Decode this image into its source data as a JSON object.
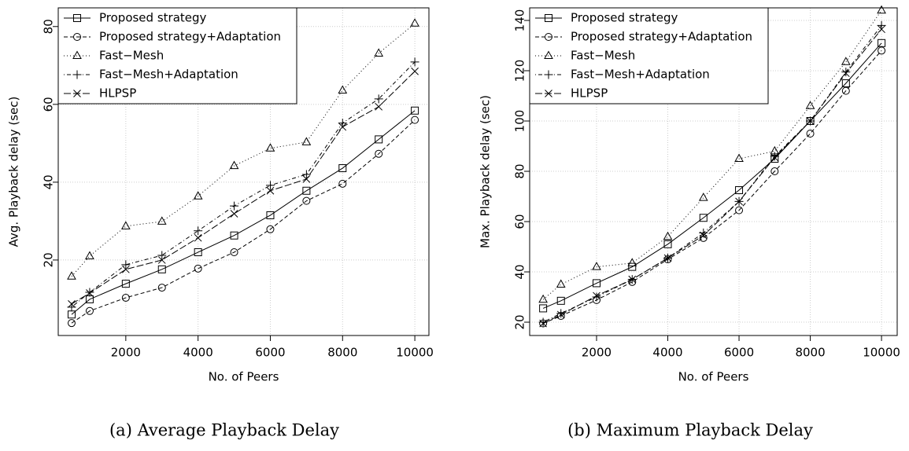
{
  "chart_data": [
    {
      "type": "line",
      "caption": "(a) Average Playback Delay",
      "xlabel": "No. of Peers",
      "ylabel": "Avg. Playback delay (sec)",
      "x": [
        500,
        1000,
        2000,
        3000,
        4000,
        5000,
        6000,
        7000,
        8000,
        9000,
        10000
      ],
      "xlim": [
        130,
        10390
      ],
      "xticks": [
        2000,
        4000,
        6000,
        8000,
        10000
      ],
      "ylim": [
        0.6,
        84.8
      ],
      "yticks": [
        20,
        40,
        60,
        80
      ],
      "grid": true,
      "legend": "top-left",
      "series": [
        {
          "name": "Proposed strategy",
          "color": "#000000",
          "marker": "square",
          "dash": "none",
          "values": [
            6,
            9.9,
            13.9,
            17.6,
            22,
            26.3,
            31.5,
            37.8,
            43.6,
            51,
            58.4
          ]
        },
        {
          "name": "Proposed strategy+Adaptation",
          "color": "#000000",
          "marker": "circle",
          "dash": "5 3",
          "values": [
            3.8,
            6.9,
            10.3,
            12.9,
            17.8,
            22,
            27.9,
            35.2,
            39.6,
            47.3,
            56
          ]
        },
        {
          "name": "Fast−Mesh",
          "color": "#000000",
          "marker": "triangle",
          "dash": "1 3",
          "values": [
            15.8,
            21,
            28.7,
            29.9,
            36.4,
            44.2,
            48.7,
            50.3,
            63.6,
            73.1,
            80.8
          ]
        },
        {
          "name": "Fast−Mesh+Adaptation",
          "color": "#000000",
          "marker": "plus",
          "dash": "1 3 5 3",
          "values": [
            7.9,
            11.7,
            18.8,
            21.2,
            27.5,
            33.9,
            39.2,
            42,
            55.2,
            61.4,
            70.9
          ]
        },
        {
          "name": "HLPSP",
          "color": "#000000",
          "marker": "cross",
          "dash": "9 3",
          "values": [
            8.7,
            11.5,
            17.6,
            20,
            25.7,
            31.9,
            37.8,
            40.8,
            54.2,
            59.4,
            68.5
          ]
        }
      ]
    },
    {
      "type": "line",
      "caption": "(b) Maximum Playback Delay",
      "xlabel": "No. of Peers",
      "ylabel": "Max. Playback delay (sec)",
      "x": [
        500,
        1000,
        2000,
        3000,
        4000,
        5000,
        6000,
        7000,
        8000,
        9000,
        10000
      ],
      "xlim": [
        122,
        10440
      ],
      "xticks": [
        2000,
        4000,
        6000,
        8000,
        10000
      ],
      "ylim": [
        14.7,
        145
      ],
      "yticks": [
        20,
        40,
        60,
        80,
        100,
        120,
        140
      ],
      "grid": true,
      "legend": "top-left",
      "series": [
        {
          "name": "Proposed strategy",
          "color": "#000000",
          "marker": "square",
          "dash": "none",
          "values": [
            25.5,
            28.5,
            35.5,
            42,
            51,
            61.5,
            72.5,
            85,
            100,
            115,
            131
          ]
        },
        {
          "name": "Proposed strategy+Adaptation",
          "color": "#000000",
          "marker": "circle",
          "dash": "5 3",
          "values": [
            19.5,
            22.5,
            28.8,
            36,
            45,
            53.5,
            64.5,
            80,
            95,
            112,
            128
          ]
        },
        {
          "name": "Fast−Mesh",
          "color": "#000000",
          "marker": "triangle",
          "dash": "1 3",
          "values": [
            29,
            35,
            42,
            43.5,
            54,
            69.5,
            85,
            88,
            106,
            123.5,
            144
          ]
        },
        {
          "name": "Fast−Mesh+Adaptation",
          "color": "#000000",
          "marker": "plus",
          "dash": "1 3 5 3",
          "values": [
            20,
            23.5,
            30,
            37,
            45.5,
            55.5,
            68,
            86,
            100,
            119.5,
            138
          ]
        },
        {
          "name": "HLPSP",
          "color": "#000000",
          "marker": "cross",
          "dash": "9 3",
          "values": [
            19.5,
            23,
            30.5,
            37,
            45.5,
            54.5,
            68,
            85.5,
            100,
            119,
            136.5
          ]
        }
      ]
    }
  ]
}
